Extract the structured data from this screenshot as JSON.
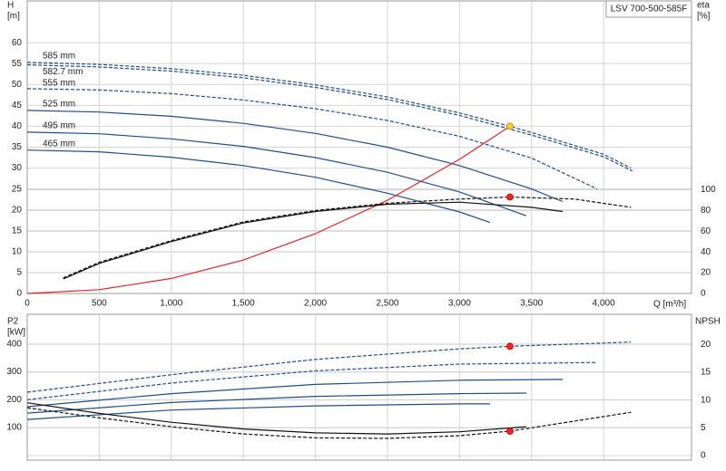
{
  "chart_data": [
    {
      "type": "line",
      "title": "LSV 700-500-585F",
      "ylabel": "H",
      "yunit": "[m]",
      "y2label": "eta",
      "y2unit": "[%]",
      "xlabel": "Q [m³/h]",
      "xlim": [
        0,
        4610
      ],
      "ylim": [
        0,
        70
      ],
      "y2lim": [
        0,
        282
      ],
      "grid": true,
      "xticks": [
        0,
        500,
        {
          "value": 1000,
          "label": "1,000"
        },
        {
          "value": 1500,
          "label": "1,500"
        },
        {
          "value": 2000,
          "label": "2,000"
        },
        {
          "value": 2500,
          "label": "2,500"
        },
        {
          "value": 3000,
          "label": "3,000"
        },
        {
          "value": 3500,
          "label": "3,500"
        },
        {
          "value": 4000,
          "label": "4,000"
        }
      ],
      "yticks": [
        0,
        5,
        10,
        15,
        20,
        25,
        30,
        35,
        40,
        45,
        50,
        55,
        60
      ],
      "y2ticks": [
        0,
        20,
        40,
        60,
        80,
        100
      ],
      "series": [
        {
          "name": "585 mm",
          "color": "#1f4e8c",
          "dash": true,
          "x": [
            0,
            500,
            1000,
            1500,
            2000,
            2500,
            3000,
            3350,
            3500,
            4000,
            4190
          ],
          "values": [
            55.3,
            54.8,
            53.8,
            52.2,
            49.9,
            47,
            43.2,
            40,
            38.5,
            33.3,
            30
          ]
        },
        {
          "name": "582.7 mm",
          "color": "#1f4e8c",
          "dash": true,
          "x": [
            0,
            500,
            1000,
            1500,
            2000,
            2500,
            3000,
            3500,
            4000,
            4200
          ],
          "values": [
            54.7,
            54.2,
            53.2,
            51.6,
            49.3,
            46.4,
            42.6,
            37.9,
            32.7,
            29.3
          ]
        },
        {
          "name": "555 mm",
          "color": "#1f4e8c",
          "dash": true,
          "x": [
            0,
            500,
            1000,
            1500,
            2000,
            2500,
            3000,
            3500,
            3955
          ],
          "values": [
            49,
            48.7,
            47.8,
            46.3,
            44.2,
            41.4,
            37.6,
            32.4,
            25
          ]
        },
        {
          "name": "525 mm",
          "color": "#1f4e8c",
          "dash": false,
          "x": [
            0,
            500,
            1000,
            1500,
            2000,
            2500,
            3000,
            3500,
            3715
          ],
          "values": [
            43.8,
            43.4,
            42.4,
            40.7,
            38.3,
            35,
            30.6,
            25,
            22
          ]
        },
        {
          "name": "495 mm",
          "color": "#1f4e8c",
          "dash": false,
          "x": [
            0,
            500,
            1000,
            1500,
            2000,
            2500,
            3000,
            3463
          ],
          "values": [
            38.6,
            38.2,
            37,
            35.2,
            32.5,
            29,
            24.3,
            18.6
          ]
        },
        {
          "name": "465 mm",
          "color": "#1f4e8c",
          "dash": false,
          "x": [
            0,
            500,
            1000,
            1500,
            2000,
            2500,
            3000,
            3211
          ],
          "values": [
            34.3,
            33.9,
            32.6,
            30.6,
            27.8,
            24,
            19.5,
            17
          ]
        },
        {
          "color": "#e8232a",
          "dash": false,
          "x": [
            0,
            500,
            1000,
            1500,
            2000,
            2500,
            3000,
            3350
          ],
          "values": [
            0,
            0.9,
            3.6,
            8,
            14.3,
            22.3,
            32.1,
            40
          ]
        },
        {
          "color": "#111111",
          "dash": true,
          "axis": "y2",
          "x": [
            250,
            500,
            1000,
            1500,
            2000,
            2500,
            3000,
            3350,
            3800,
            4190
          ],
          "values": [
            15,
            30,
            51,
            69,
            80,
            87,
            91,
            93,
            91,
            83
          ]
        },
        {
          "color": "#111111",
          "dash": false,
          "axis": "y2",
          "x": [
            250,
            500,
            1000,
            1500,
            2000,
            2500,
            3000,
            3500,
            3715
          ],
          "values": [
            14,
            29,
            50,
            68,
            79,
            86,
            88,
            83,
            79
          ]
        }
      ],
      "points": [
        {
          "x": 3350,
          "y": 40,
          "color": "#ffd21f"
        },
        {
          "x": 3350,
          "y": 93,
          "axis": "y2",
          "color": "#ff2020"
        }
      ]
    },
    {
      "type": "line",
      "ylabel": "P2",
      "yunit": "[kW]",
      "y2label": "NPSH",
      "ylim": [
        -17,
        507
      ],
      "y2lim": [
        -0.8,
        25.4
      ],
      "grid": true,
      "yticks": [
        100,
        200,
        300,
        400
      ],
      "y2ticks": [
        0,
        5,
        10,
        15,
        20
      ],
      "series": [
        {
          "color": "#1f4e8c",
          "dash": true,
          "x": [
            0,
            1000,
            2000,
            3000,
            3350,
            4190
          ],
          "values": [
            227,
            290,
            345,
            383,
            392,
            407
          ]
        },
        {
          "color": "#1f4e8c",
          "dash": true,
          "x": [
            0,
            1000,
            2000,
            3000,
            3955
          ],
          "values": [
            200,
            260,
            304,
            328,
            334
          ]
        },
        {
          "color": "#1f4e8c",
          "dash": false,
          "x": [
            0,
            1000,
            2000,
            3000,
            3715
          ],
          "values": [
            175,
            222,
            255,
            270,
            273
          ]
        },
        {
          "color": "#1f4e8c",
          "dash": false,
          "x": [
            0,
            1000,
            2000,
            3000,
            3463
          ],
          "values": [
            152,
            190,
            212,
            222,
            224
          ]
        },
        {
          "color": "#1f4e8c",
          "dash": false,
          "x": [
            0,
            1000,
            2000,
            3000,
            3211
          ],
          "values": [
            129,
            163,
            178,
            185,
            185
          ]
        },
        {
          "color": "#111111",
          "dash": true,
          "axis": "y2",
          "x": [
            0,
            500,
            1000,
            1500,
            2000,
            2500,
            3000,
            3350,
            4190
          ],
          "values": [
            8.6,
            6.8,
            5.2,
            3.9,
            3.2,
            3.1,
            3.6,
            4.4,
            7.8
          ]
        },
        {
          "color": "#111111",
          "dash": false,
          "axis": "y2",
          "x": [
            0,
            500,
            1000,
            1500,
            2000,
            2500,
            3000,
            3463
          ],
          "values": [
            9.5,
            7.6,
            6,
            4.8,
            4.1,
            3.9,
            4.3,
            5.2
          ]
        }
      ],
      "points": [
        {
          "x": 3350,
          "y": 392,
          "color": "#ff2020"
        },
        {
          "x": 3350,
          "y": 4.4,
          "axis": "y2",
          "color": "#ff2020"
        }
      ]
    }
  ]
}
